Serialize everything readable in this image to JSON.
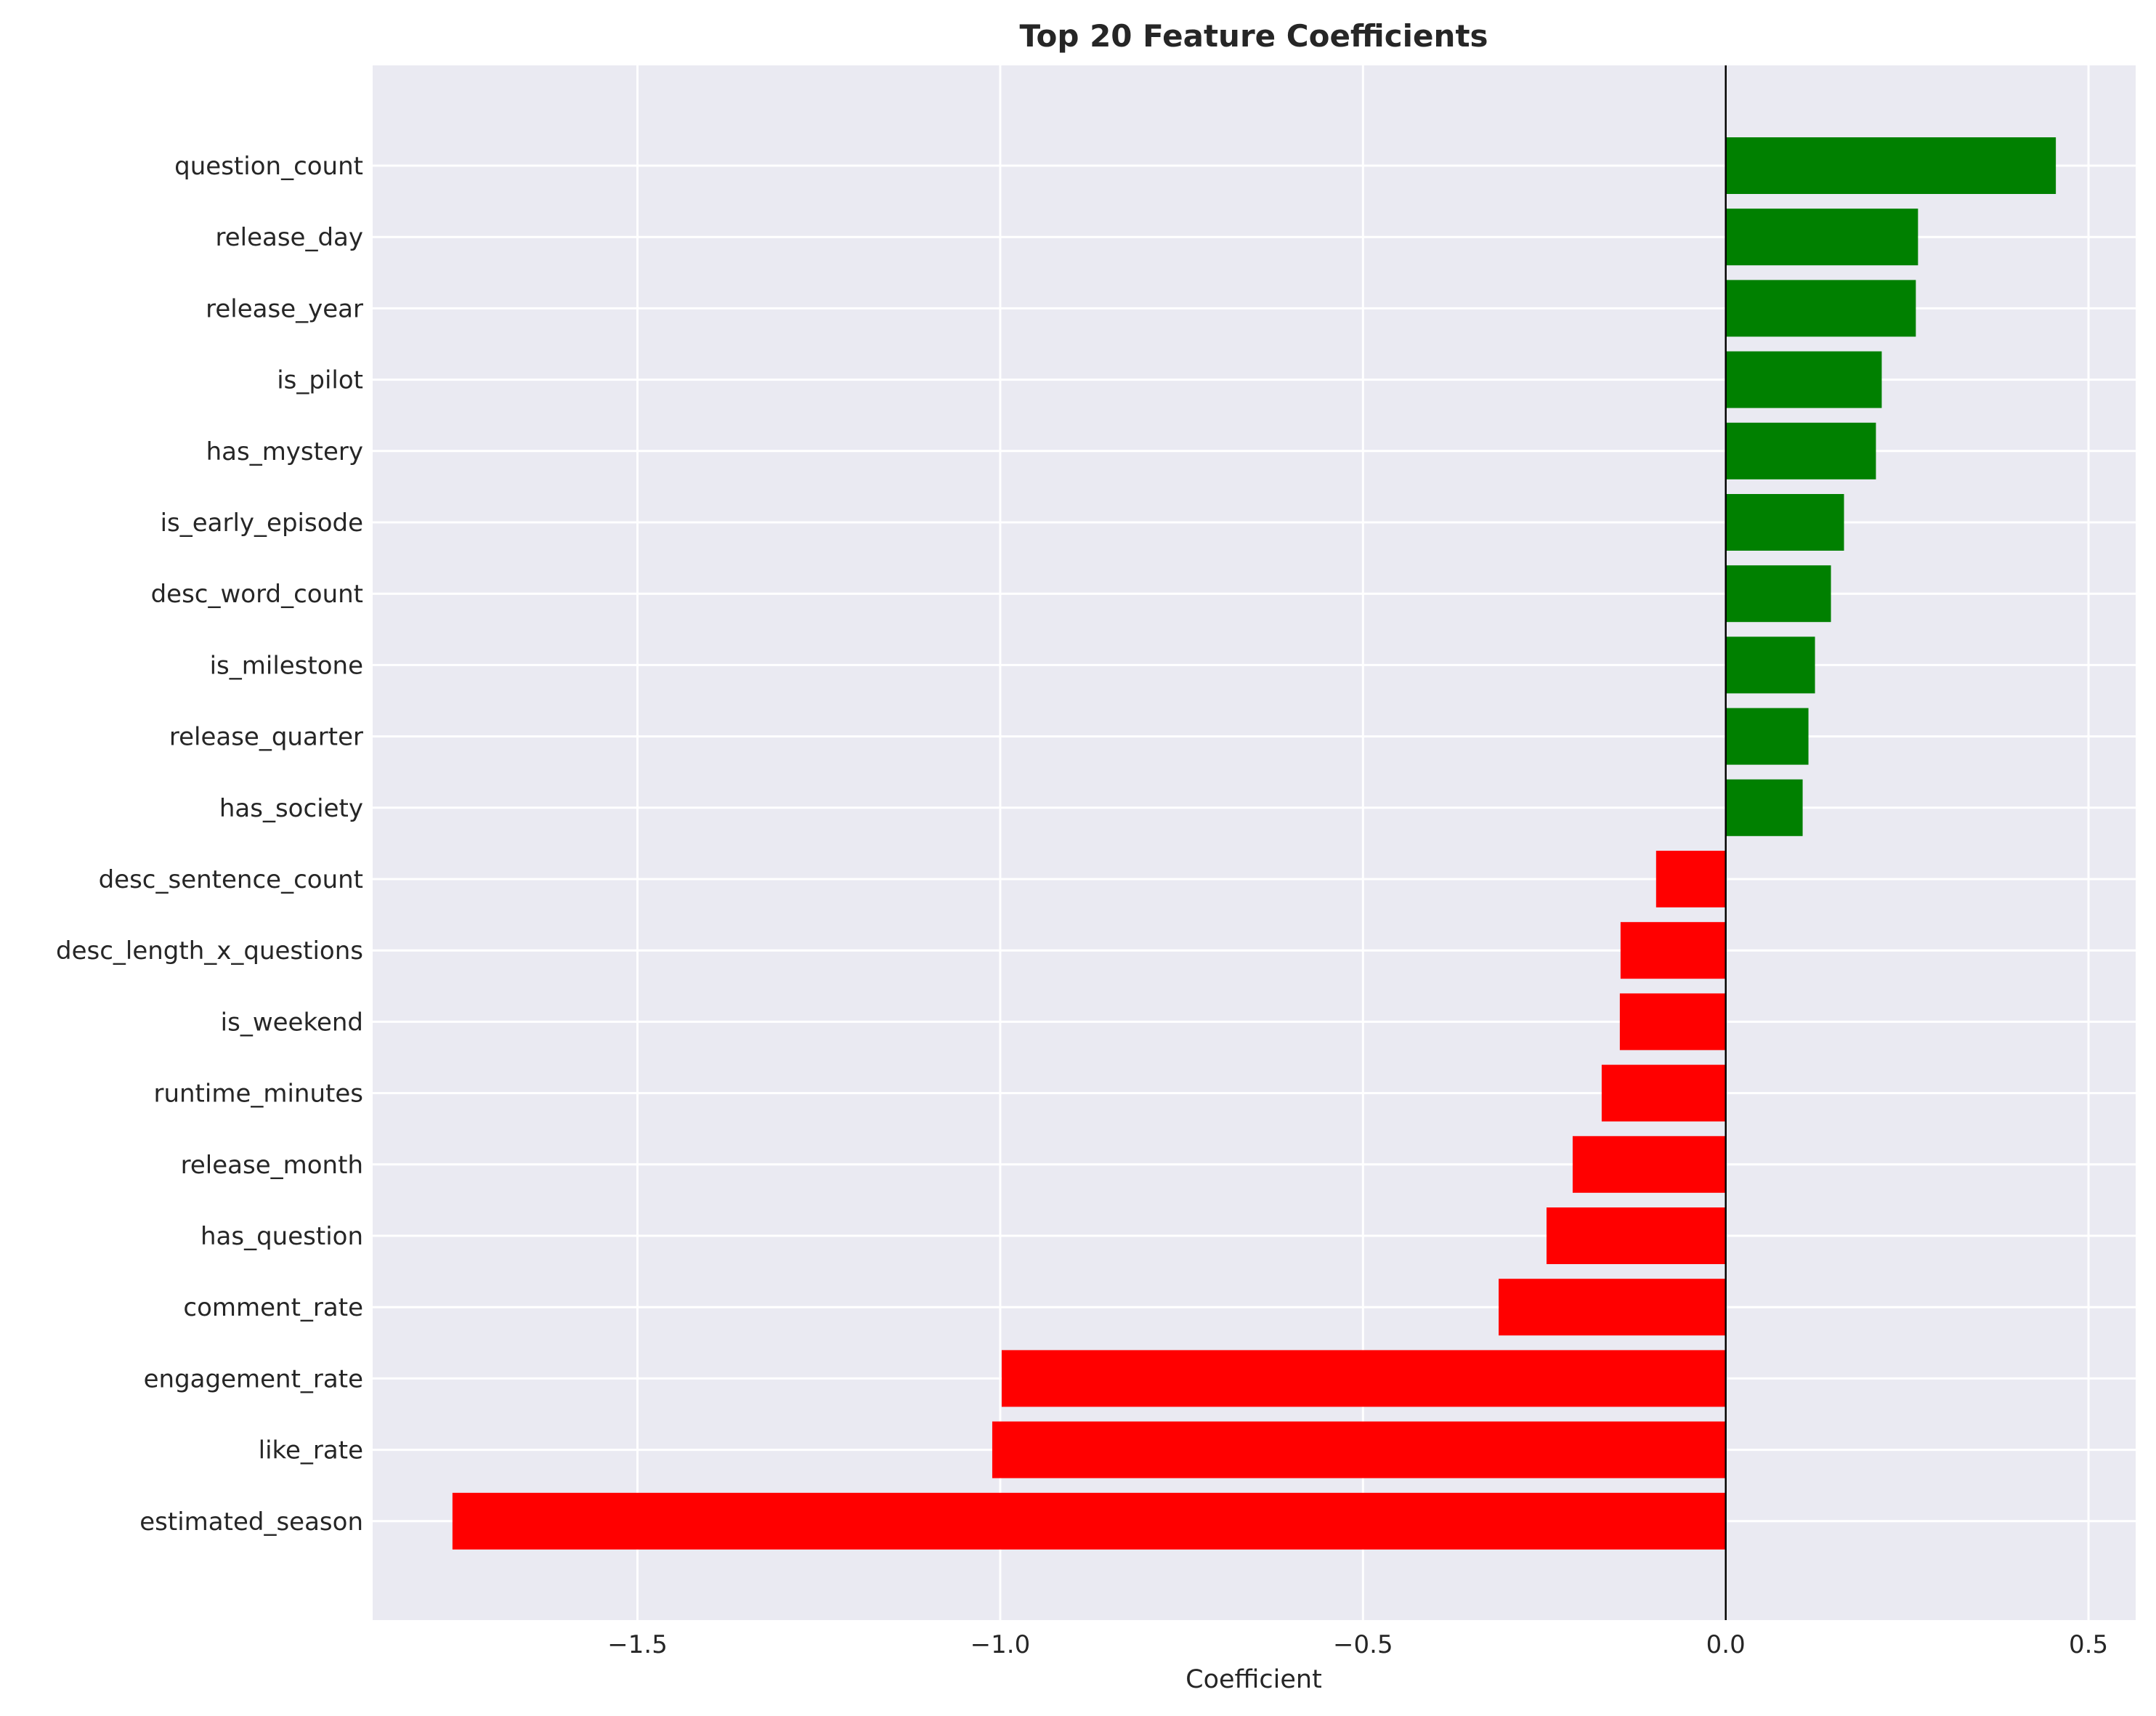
{
  "chart_data": {
    "type": "bar",
    "orientation": "horizontal",
    "title": "Top 20 Feature Coefficients",
    "xlabel": "Coefficient",
    "ylabel": "",
    "xlim": [
      -1.865,
      0.565
    ],
    "xticks": [
      -1.5,
      -1.0,
      -0.5,
      0.0,
      0.5
    ],
    "xtick_labels": [
      "−1.5",
      "−1.0",
      "−0.5",
      "0.0",
      "0.5"
    ],
    "grid": true,
    "zero_line": true,
    "positive_color": "#008000",
    "negative_color": "#ff0000",
    "background_color": "#eaeaf2",
    "categories": [
      "question_count",
      "release_day",
      "release_year",
      "is_pilot",
      "has_mystery",
      "is_early_episode",
      "desc_word_count",
      "is_milestone",
      "release_quarter",
      "has_society",
      "desc_sentence_count",
      "desc_length_x_questions",
      "is_weekend",
      "runtime_minutes",
      "release_month",
      "has_question",
      "comment_rate",
      "engagement_rate",
      "like_rate",
      "estimated_season"
    ],
    "values": [
      0.455,
      0.265,
      0.262,
      0.215,
      0.207,
      0.163,
      0.145,
      0.123,
      0.114,
      0.106,
      -0.096,
      -0.145,
      -0.146,
      -0.171,
      -0.211,
      -0.247,
      -0.313,
      -0.998,
      -1.011,
      -1.755
    ]
  }
}
